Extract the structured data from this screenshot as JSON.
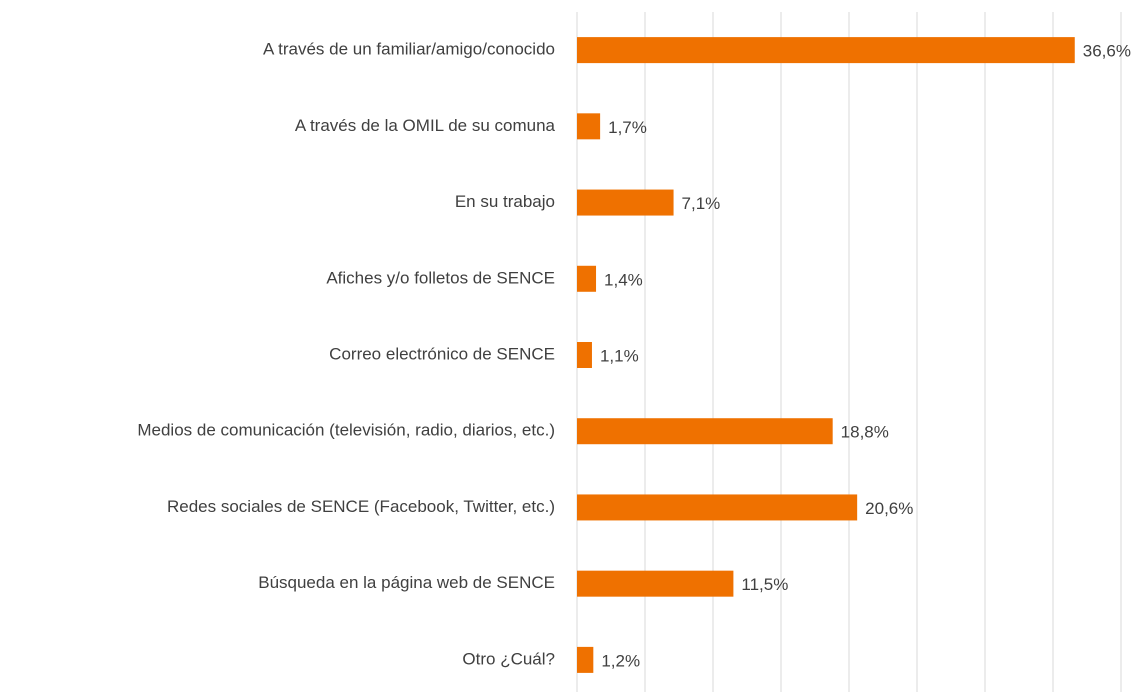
{
  "chart_data": {
    "type": "barh",
    "categories": [
      "A través de un familiar/amigo/conocido",
      "A través de la OMIL de su comuna",
      "En su trabajo",
      "Afiches y/o folletos de SENCE",
      "Correo electrónico de SENCE",
      "Medios de comunicación (televisión, radio, diarios, etc.)",
      "Redes sociales de SENCE (Facebook, Twitter, etc.)",
      "Búsqueda en la página web de SENCE",
      "Otro ¿Cuál?"
    ],
    "values": [
      36.6,
      1.7,
      7.1,
      1.4,
      1.1,
      18.8,
      20.6,
      11.5,
      1.2
    ],
    "value_labels": [
      "36,6%",
      "1,7%",
      "7,1%",
      "1,4%",
      "1,1%",
      "18,8%",
      "20,6%",
      "11,5%",
      "1,2%"
    ],
    "color": "#ef7100",
    "xlim": [
      0,
      40
    ],
    "xticks": [
      0,
      5,
      10,
      15,
      20,
      25,
      30,
      35,
      40
    ],
    "grid": true
  }
}
